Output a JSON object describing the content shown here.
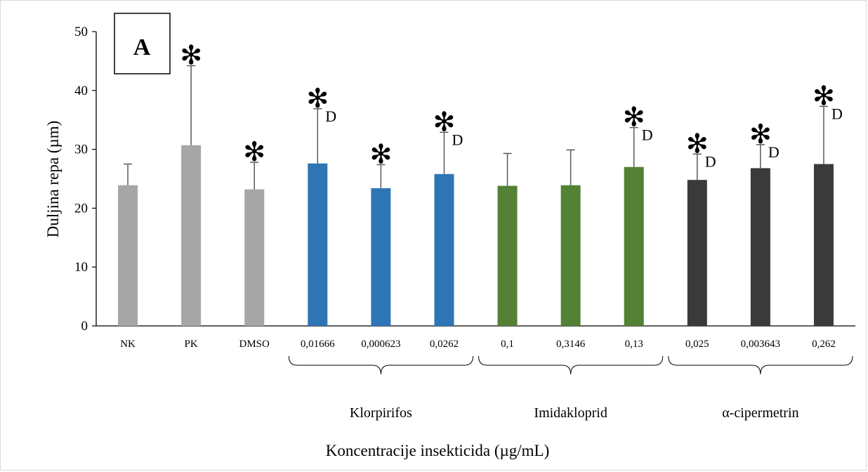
{
  "chart_data": {
    "type": "bar",
    "panel_label": "A",
    "ylabel": "Duljina repa (µm)",
    "xlabel": "Koncentracije insekticida (µg/mL)",
    "ylim": [
      0,
      50
    ],
    "yticks": [
      0,
      10,
      20,
      30,
      40,
      50
    ],
    "grid": false,
    "categories": [
      "NK",
      "PK",
      "DMSO",
      "0,01666",
      "0,000623",
      "0,0262",
      "0,1",
      "0,3146",
      "0,13",
      "0,025",
      "0,003643",
      "0,262"
    ],
    "values": [
      23.9,
      30.7,
      23.2,
      27.6,
      23.4,
      25.8,
      23.8,
      23.9,
      27.0,
      24.8,
      26.8,
      27.5
    ],
    "error_upper": [
      27.5,
      44.2,
      27.8,
      36.9,
      27.4,
      32.9,
      29.3,
      29.9,
      33.7,
      29.2,
      30.8,
      37.3
    ],
    "bar_colors": [
      "#a6a6a6",
      "#a6a6a6",
      "#a6a6a6",
      "#2e75b6",
      "#2e75b6",
      "#2e75b6",
      "#538135",
      "#538135",
      "#538135",
      "#3a3a3a",
      "#3a3a3a",
      "#3a3a3a"
    ],
    "annotations": [
      "",
      "*",
      "*",
      "*D",
      "*",
      "*D",
      "",
      "",
      "*D",
      "*D",
      "*D",
      "*D"
    ],
    "star_symbol": "✻",
    "d_symbol": "D",
    "groups": [
      {
        "label": "Klorpirifos",
        "start": 3,
        "end": 5
      },
      {
        "label": "Imidakloprid",
        "start": 6,
        "end": 8
      },
      {
        "label": "α-cipermetrin",
        "start": 9,
        "end": 11
      }
    ]
  }
}
